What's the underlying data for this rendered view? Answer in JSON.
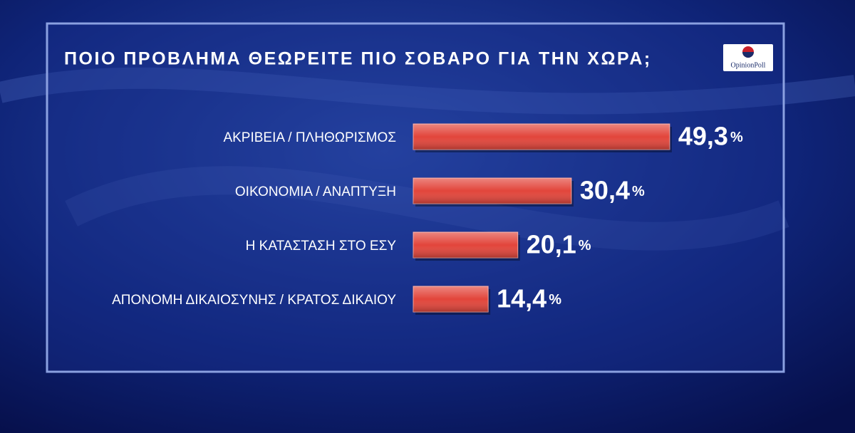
{
  "chart_data": {
    "type": "bar",
    "orientation": "horizontal",
    "title": "ΠΟΙΟ ΠΡΟΒΛΗΜΑ ΘΕΩΡΕΙΤΕ ΠΙΟ ΣΟΒΑΡΟ ΓΙΑ ΤΗΝ ΧΩΡΑ;",
    "logo": "OpinionPoll",
    "categories": [
      "ΑΚΡΙΒΕΙΑ / ΠΛΗΘΩΡΙΣΜΟΣ",
      "ΟΙΚΟΝΟΜΙΑ / ΑΝΑΠΤΥΞΗ",
      "Η ΚΑΤΑΣΤΑΣΗ ΣΤΟ ΕΣΥ",
      "ΑΠΟΝΟΜΗ ΔΙΚΑΙΟΣΥΝΗΣ / ΚΡΑΤΟΣ ΔΙΚΑΙΟΥ"
    ],
    "values": [
      49.3,
      30.4,
      20.1,
      14.4
    ],
    "value_labels": [
      "49,3%",
      "30,4%",
      "20,1%",
      "14,4%"
    ],
    "color": "#e2453b"
  }
}
